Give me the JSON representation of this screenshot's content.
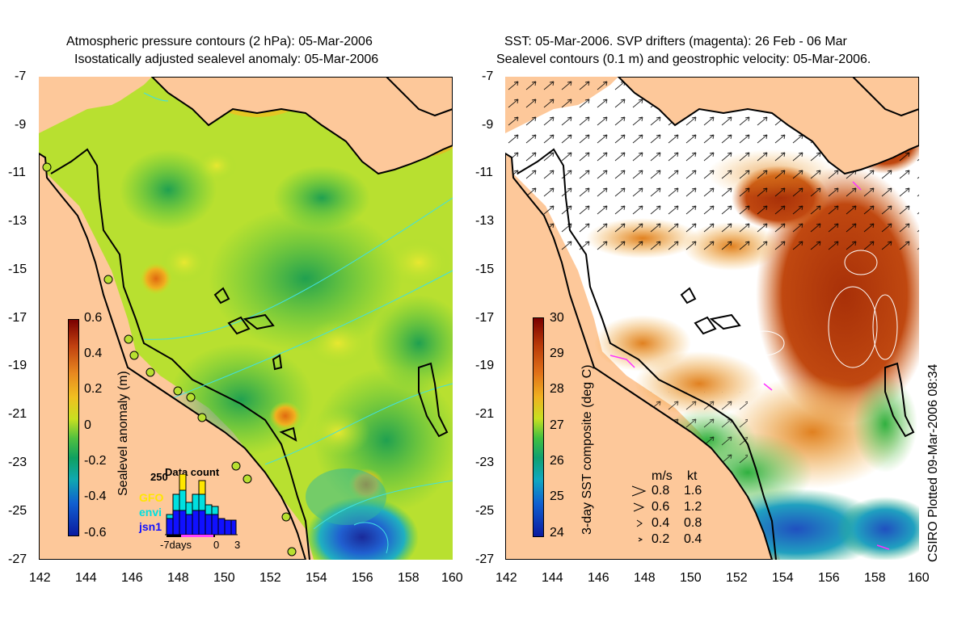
{
  "left_panel": {
    "title_line1": "Atmospheric pressure contours (2 hPa): 05-Mar-2006",
    "title_line2": "Isostatically adjusted sealevel anomaly: 05-Mar-2006",
    "colorbar_label": "Sealevel anomaly (m)",
    "colorbar_ticks": [
      "0.6",
      "0.4",
      "0.2",
      "0",
      "-0.2",
      "-0.4",
      "-0.6"
    ],
    "colorbar_range": [
      -0.6,
      0.6
    ],
    "inset": {
      "title": "Data count",
      "ymax_label": "250",
      "x_labels": [
        "-7days",
        "0",
        "3"
      ],
      "satellites": [
        {
          "name": "GFO",
          "color": "#ffe600"
        },
        {
          "name": "envi",
          "color": "#00e0e0"
        },
        {
          "name": "jsn1",
          "color": "#1010ff"
        }
      ]
    }
  },
  "right_panel": {
    "title_line1": "SST: 05-Mar-2006. SVP drifters (magenta): 26 Feb - 06 Mar",
    "title_line2": "Sealevel contours (0.1 m) and geostrophic velocity: 05-Mar-2006.",
    "colorbar_label": "3-day SST composite (deg C)",
    "colorbar_ticks": [
      "30",
      "29",
      "28",
      "27",
      "26",
      "25",
      "24"
    ],
    "colorbar_range": [
      24,
      30
    ],
    "speed_legend": {
      "header_ms": "m/s",
      "header_kt": "kt",
      "rows": [
        {
          "ms": "0.8",
          "kt": "1.6"
        },
        {
          "ms": "0.6",
          "kt": "1.2"
        },
        {
          "ms": "0.4",
          "kt": "0.8"
        },
        {
          "ms": "0.2",
          "kt": "0.4"
        }
      ]
    },
    "credit": "CSIRO Plotted 09-Mar-2006 08:34"
  },
  "axes": {
    "x_ticks": [
      "142",
      "144",
      "146",
      "148",
      "150",
      "152",
      "154",
      "156",
      "158",
      "160"
    ],
    "y_ticks": [
      "-7",
      "-9",
      "-11",
      "-13",
      "-15",
      "-17",
      "-19",
      "-21",
      "-23",
      "-25",
      "-27"
    ],
    "lon_range": [
      142,
      160
    ],
    "lat_range": [
      -27,
      -7
    ]
  },
  "colors": {
    "land": "#fdc89a",
    "coast": "#000000",
    "contour": "#40e0e0",
    "sea_level_mid": "#40c030",
    "sst_warm": "#b84010"
  }
}
